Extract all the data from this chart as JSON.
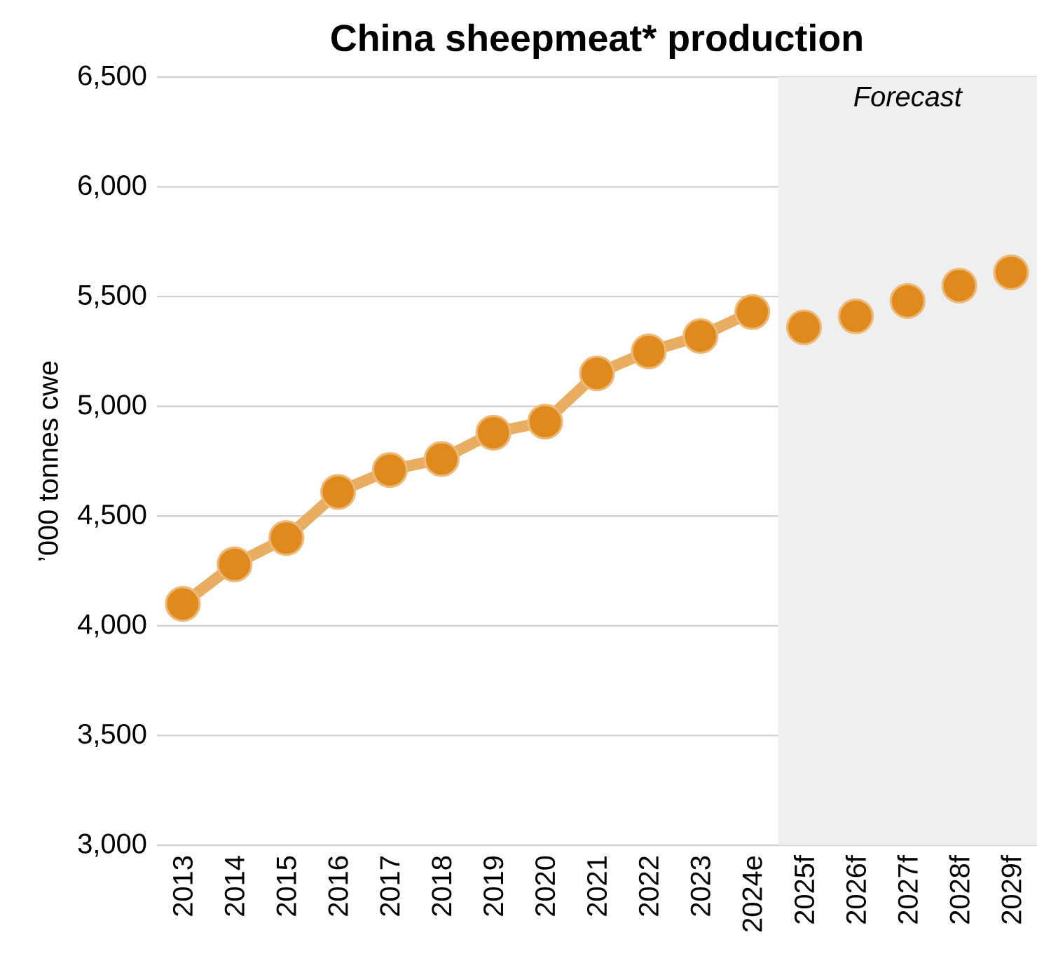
{
  "chart_data": {
    "type": "line",
    "title": "China sheepmeat* production",
    "ylabel": "’000 tonnes cwe",
    "categories": [
      "2013",
      "2014",
      "2015",
      "2016",
      "2017",
      "2018",
      "2019",
      "2020",
      "2021",
      "2022",
      "2023",
      "2024e",
      "2025f",
      "2026f",
      "2027f",
      "2028f",
      "2029f"
    ],
    "series": [
      {
        "color": "#e08a1e",
        "values": [
          4100,
          4280,
          4400,
          4610,
          4710,
          4760,
          4880,
          4930,
          5150,
          5250,
          5320,
          5430,
          null,
          null,
          null,
          null,
          null
        ]
      },
      {
        "type": "scatter",
        "color": "#e08a1e",
        "values": [
          null,
          null,
          null,
          null,
          null,
          null,
          null,
          null,
          null,
          null,
          null,
          null,
          5360,
          5410,
          5480,
          5550,
          5610
        ]
      }
    ],
    "ylim": [
      3000,
      6500
    ],
    "yticks": [
      {
        "value": 3000,
        "label": "3,000"
      },
      {
        "value": 3500,
        "label": "3,500"
      },
      {
        "value": 4000,
        "label": "4,000"
      },
      {
        "value": 4500,
        "label": "4,500"
      },
      {
        "value": 5000,
        "label": "5,000"
      },
      {
        "value": 5500,
        "label": "5,500"
      },
      {
        "value": 6000,
        "label": "6,000"
      },
      {
        "value": 6500,
        "label": "6,500"
      }
    ],
    "grid": "y",
    "marker": "circle",
    "bands": [
      {
        "axis": "x",
        "from": "2025f",
        "to": "2029f",
        "label": "Forecast",
        "color": "#efefef"
      }
    ]
  }
}
